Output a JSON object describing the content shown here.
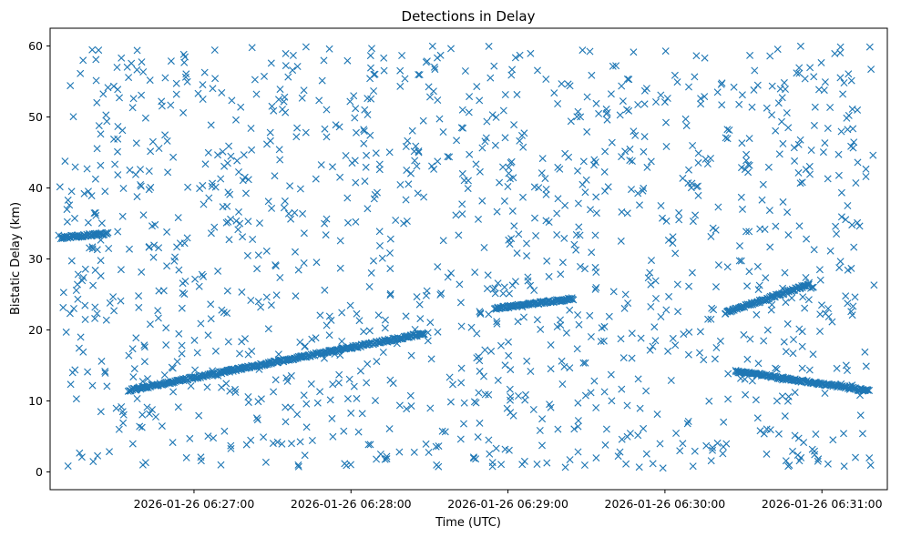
{
  "chart_data": {
    "type": "scatter",
    "title": "Detections in Delay",
    "xlabel": "Time (UTC)",
    "ylabel": "Bistatic Delay (km)",
    "x_ticks": [
      "2026-01-26 06:27:00",
      "2026-01-26 06:28:00",
      "2026-01-26 06:29:00",
      "2026-01-26 06:30:00",
      "2026-01-26 06:31:00"
    ],
    "y_ticks": [
      "0",
      "10",
      "20",
      "30",
      "40",
      "50",
      "60"
    ],
    "xlim": [
      "2026-01-26 06:26:05",
      "2026-01-26 06:31:25"
    ],
    "ylim": [
      -2.5,
      62.5
    ],
    "marker": "x",
    "color": "#1f77b4",
    "grid": false,
    "tracks": [
      {
        "x_start": "2026-01-26 06:26:09",
        "x_end": "2026-01-26 06:26:27",
        "y_start": 33.0,
        "y_end": 33.6
      },
      {
        "x_start": "2026-01-26 06:26:35",
        "x_end": "2026-01-26 06:28:28",
        "y_start": 11.5,
        "y_end": 19.5
      },
      {
        "x_start": "2026-01-26 06:28:55",
        "x_end": "2026-01-26 06:29:25",
        "y_start": 23.0,
        "y_end": 24.4
      },
      {
        "x_start": "2026-01-26 06:30:23",
        "x_end": "2026-01-26 06:30:55",
        "y_start": 22.4,
        "y_end": 26.4
      },
      {
        "x_start": "2026-01-26 06:30:27",
        "x_end": "2026-01-26 06:31:18",
        "y_start": 14.2,
        "y_end": 11.4
      }
    ],
    "clutter": {
      "count": 1320,
      "x_range": [
        "2026-01-26 06:26:08",
        "2026-01-26 06:31:20"
      ],
      "y_range": [
        0.5,
        60.0
      ]
    }
  }
}
